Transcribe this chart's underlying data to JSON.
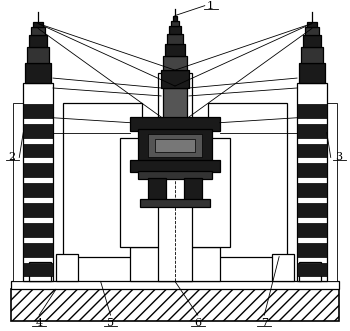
{
  "bg_color": "#ffffff",
  "fig_width": 3.5,
  "fig_height": 3.31,
  "dpi": 100,
  "label_fontsize": 8,
  "lw_thin": 0.6,
  "lw_med": 0.9,
  "lw_thick": 1.2,
  "base_hatch": "///",
  "colors": {
    "black": "#000000",
    "dark": "#1a1a1a",
    "mid": "#444444",
    "light_gray": "#aaaaaa",
    "white": "#ffffff"
  }
}
